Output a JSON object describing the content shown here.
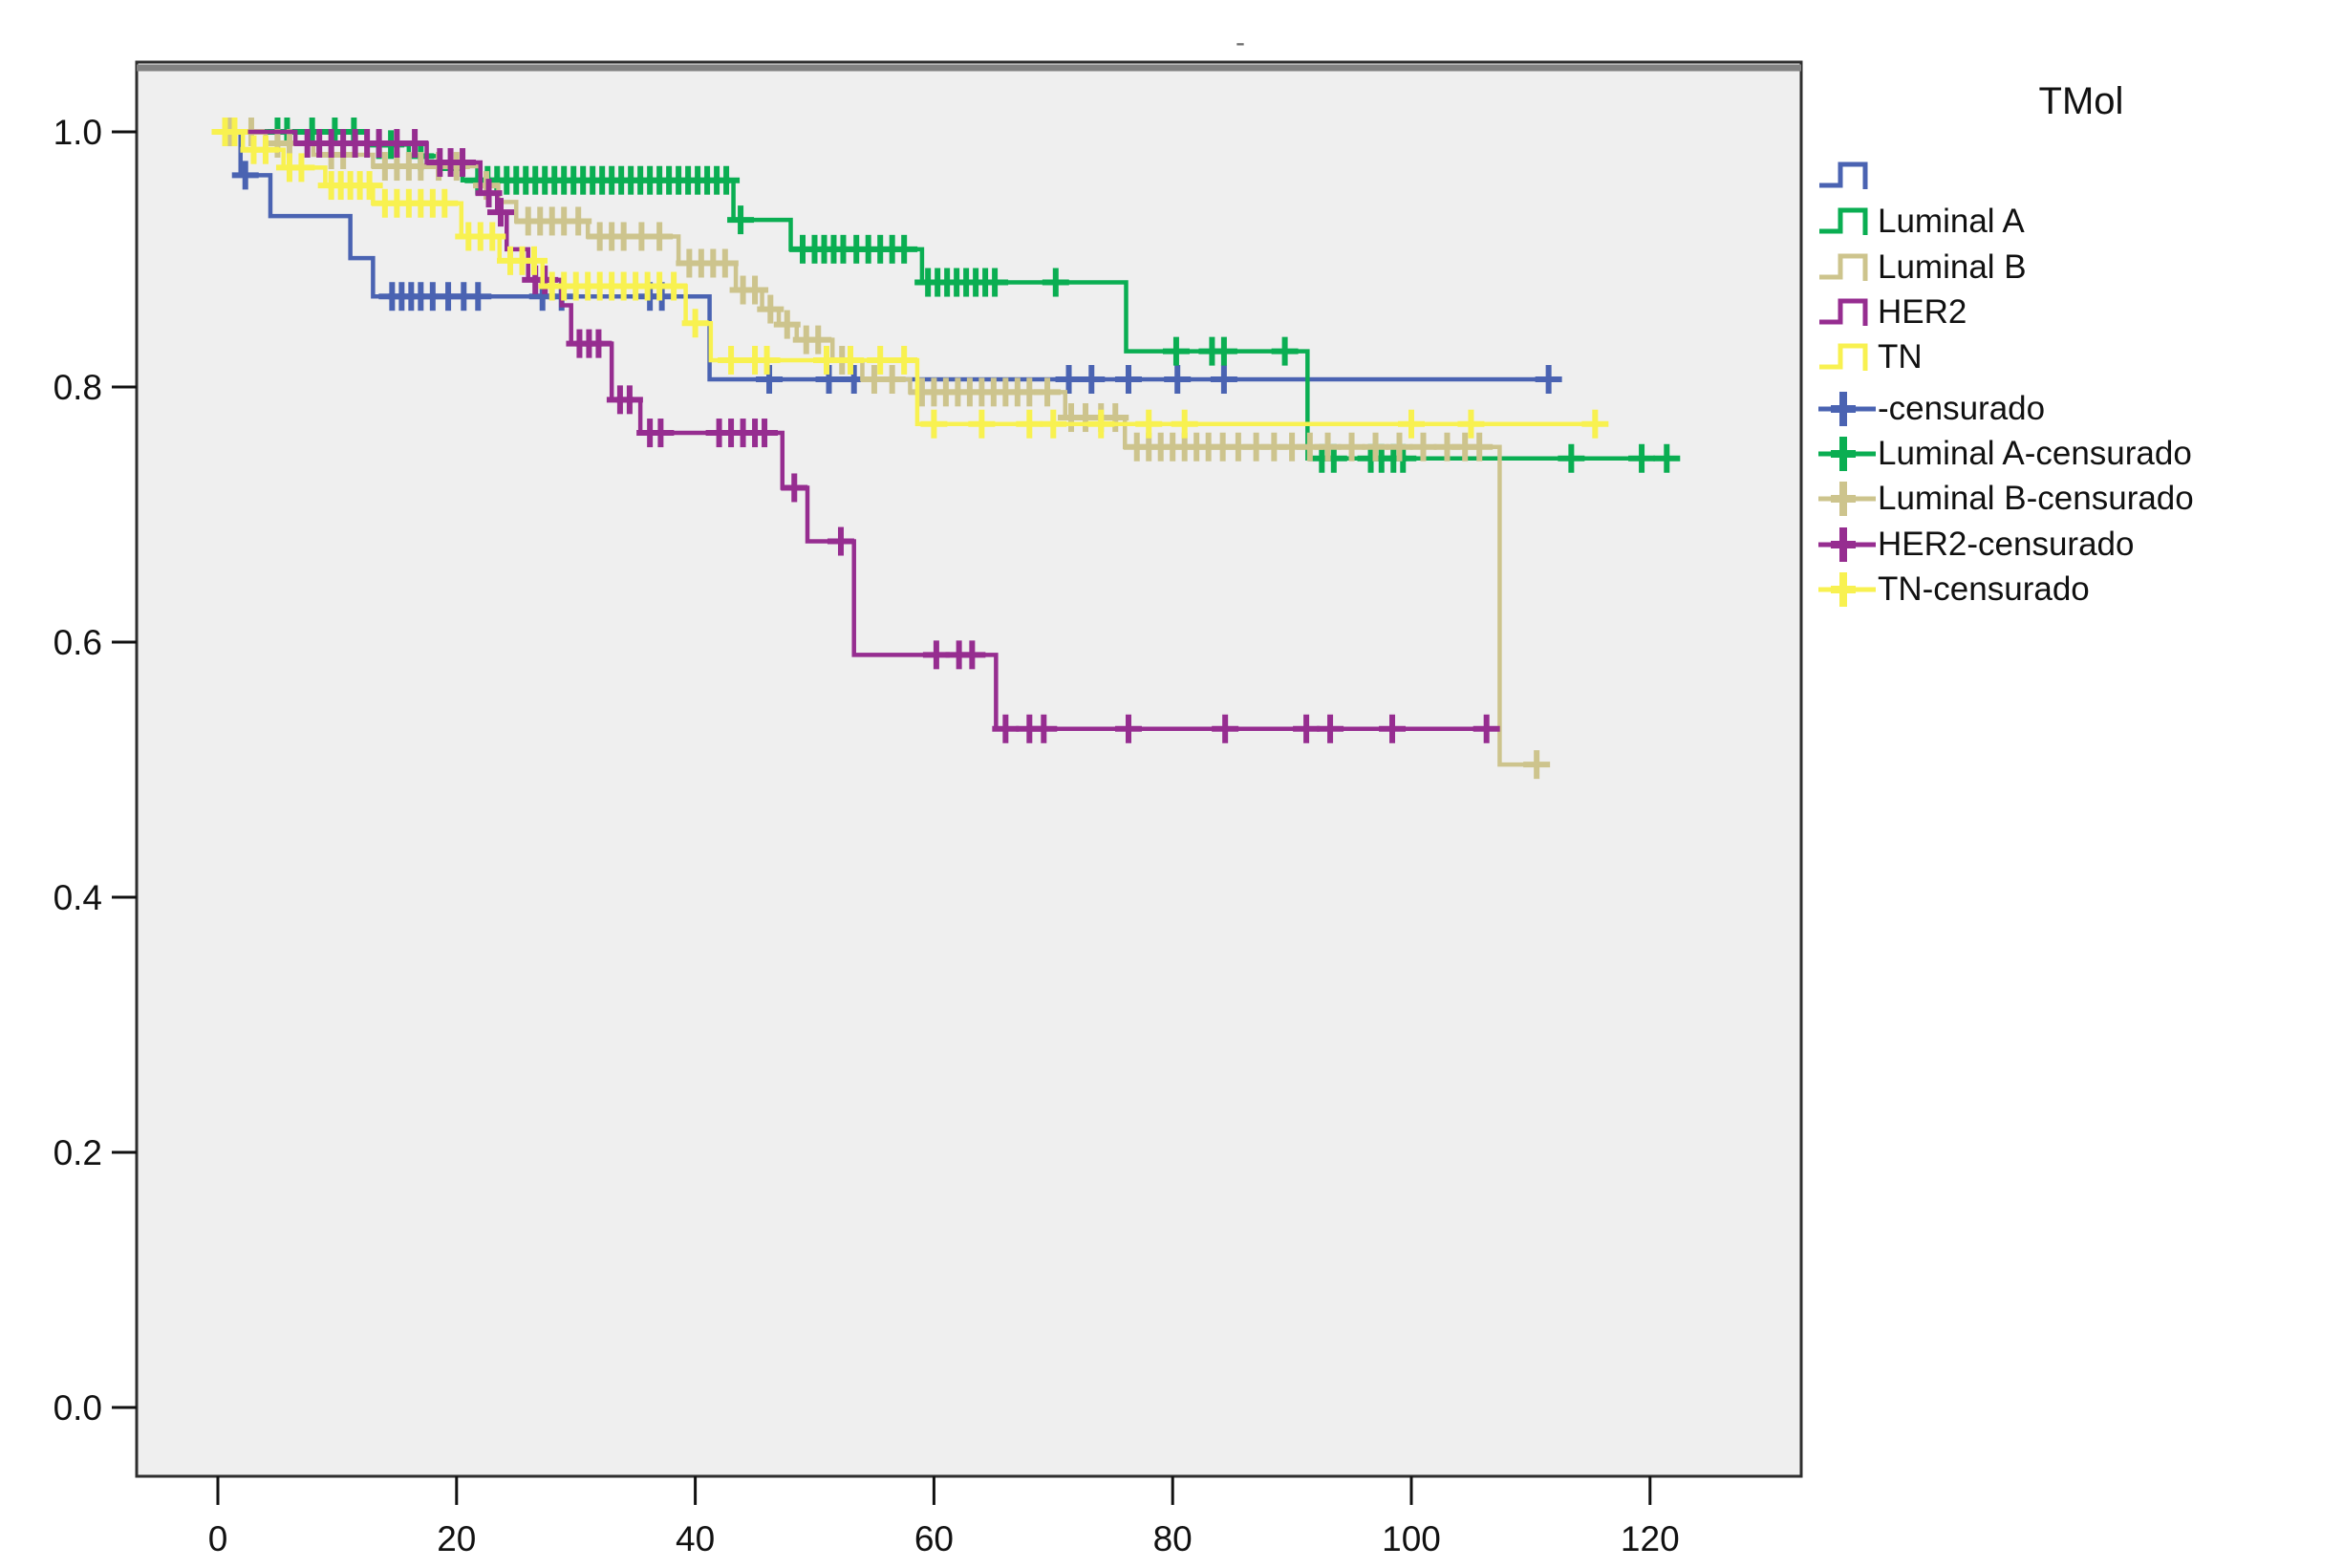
{
  "artifact_mark": "-",
  "chart_data": {
    "type": "line",
    "subtype": "kaplan-meier-step-survival",
    "title": "",
    "xlabel": "",
    "ylabel": "",
    "grid": false,
    "legend_position": "right",
    "x_ticks": [
      0,
      20,
      40,
      60,
      80,
      100,
      120
    ],
    "y_ticks": [
      "1.0",
      "0.8",
      "0.6",
      "0.4",
      "0.2",
      "0.0"
    ],
    "y_tick_values": [
      1.0,
      0.8,
      0.6,
      0.4,
      0.2,
      0.0
    ],
    "xlim": [
      -6.8,
      132.8
    ],
    "ylim": [
      -0.054,
      1.054
    ],
    "plot_background": "#efefef",
    "border_color": "#2e2e2e",
    "series": [
      {
        "name": "",
        "color": "#4a63b2",
        "end_t": 111.5,
        "steps": [
          [
            0,
            1.0
          ],
          [
            1.9,
            0.966
          ],
          [
            4.4,
            0.934
          ],
          [
            11.1,
            0.901
          ],
          [
            13,
            0.871
          ],
          [
            41.2,
            0.806
          ]
        ],
        "censors": [
          2.3,
          14.6,
          15.4,
          16.2,
          17,
          18,
          19.3,
          20.6,
          21.8,
          27.2,
          28.8,
          36.2,
          37.2,
          46.2,
          51.2,
          53.3,
          71.3,
          73.2,
          76.3,
          80.4,
          84.3,
          111.5
        ]
      },
      {
        "name": "Luminal A",
        "color": "#0aae52",
        "end_t": 122.5,
        "steps": [
          [
            0,
            1.0
          ],
          [
            12.5,
            0.99
          ],
          [
            16,
            0.981
          ],
          [
            18.5,
            0.971
          ],
          [
            20.5,
            0.962
          ],
          [
            43.2,
            0.931
          ],
          [
            48,
            0.908
          ],
          [
            59,
            0.882
          ],
          [
            76.1,
            0.828
          ],
          [
            91.3,
            0.744
          ]
        ],
        "censors": [
          5,
          5.8,
          7.9,
          9.8,
          11.4,
          13.5,
          14.5,
          17,
          21.8,
          22.6,
          23.4,
          24.2,
          25,
          25.8,
          26.6,
          27.4,
          28.2,
          29,
          29.8,
          30.6,
          31.4,
          32.2,
          33,
          33.8,
          34.6,
          35.4,
          36.2,
          37,
          37.8,
          38.6,
          39.4,
          40.2,
          41,
          41.8,
          42.6,
          43.8,
          49,
          50,
          50.8,
          51.6,
          52.4,
          53.5,
          54.5,
          55.5,
          56.5,
          57.5,
          59.5,
          60.3,
          61.1,
          61.9,
          62.7,
          63.5,
          64.3,
          65.1,
          70.2,
          80.3,
          83.3,
          84.3,
          89.4,
          92.5,
          93.5,
          96.6,
          97.5,
          98.5,
          99.3,
          113.4,
          119.3,
          121.4
        ]
      },
      {
        "name": "Luminal B",
        "color": "#cdc48d",
        "end_t": 111.3,
        "steps": [
          [
            0,
            1.0
          ],
          [
            4,
            0.991
          ],
          [
            8,
            0.982
          ],
          [
            13,
            0.973
          ],
          [
            22,
            0.958
          ],
          [
            23.5,
            0.945
          ],
          [
            25,
            0.93
          ],
          [
            31,
            0.918
          ],
          [
            38.6,
            0.897
          ],
          [
            43.4,
            0.876
          ],
          [
            45.6,
            0.861
          ],
          [
            47,
            0.849
          ],
          [
            48.5,
            0.837
          ],
          [
            51.5,
            0.821
          ],
          [
            54,
            0.806
          ],
          [
            58,
            0.796
          ],
          [
            71,
            0.776
          ],
          [
            76,
            0.753
          ],
          [
            107.4,
            0.504
          ]
        ],
        "censors": [
          1,
          2.8,
          5,
          6,
          9.5,
          10.5,
          14,
          15,
          16,
          17,
          18.5,
          20,
          22.5,
          26,
          27,
          28,
          29,
          30.2,
          32,
          33,
          34,
          35.5,
          37,
          39.5,
          40.5,
          41.5,
          42.5,
          44,
          45,
          46.3,
          47.7,
          49.3,
          50.3,
          52.3,
          55,
          56.5,
          59,
          60,
          61,
          62,
          63,
          64,
          65,
          66,
          67,
          68,
          69.5,
          71.5,
          72.7,
          74,
          75.2,
          77,
          78,
          79,
          80,
          81,
          82,
          83,
          84.2,
          85.5,
          87,
          88.5,
          90,
          91.5,
          93,
          95,
          97,
          99,
          101,
          103,
          104.5,
          105.7,
          110.5
        ]
      },
      {
        "name": "HER2",
        "color": "#962d90",
        "end_t": 106.3,
        "steps": [
          [
            0,
            1.0
          ],
          [
            6.5,
            0.991
          ],
          [
            17.5,
            0.976
          ],
          [
            22,
            0.952
          ],
          [
            23.4,
            0.937
          ],
          [
            24.2,
            0.908
          ],
          [
            26,
            0.884
          ],
          [
            28.8,
            0.864
          ],
          [
            29.6,
            0.834
          ],
          [
            33,
            0.79
          ],
          [
            35.4,
            0.764
          ],
          [
            47.3,
            0.721
          ],
          [
            49.4,
            0.679
          ],
          [
            53.3,
            0.59
          ],
          [
            65.2,
            0.532
          ]
        ],
        "censors": [
          7.5,
          8.5,
          9.5,
          10.5,
          11.5,
          12.5,
          13.5,
          15,
          16.5,
          18.6,
          19.5,
          20.5,
          22.7,
          23.7,
          26.6,
          27.4,
          30.3,
          31.1,
          31.9,
          33.7,
          34.5,
          36.2,
          37.1,
          42,
          43,
          44,
          45,
          45.8,
          48.3,
          52.2,
          60.2,
          62.1,
          63.2,
          66,
          68,
          69.2,
          76.3,
          84.4,
          91.2,
          93.2,
          98.4,
          106.3
        ]
      },
      {
        "name": "TN",
        "color": "#f8f150",
        "end_t": 115.4,
        "steps": [
          [
            0,
            1.0
          ],
          [
            2.1,
            0.986
          ],
          [
            5.5,
            0.972
          ],
          [
            9,
            0.958
          ],
          [
            13,
            0.944
          ],
          [
            20.4,
            0.918
          ],
          [
            23.6,
            0.899
          ],
          [
            27.2,
            0.879
          ],
          [
            39.2,
            0.85
          ],
          [
            41.3,
            0.821
          ],
          [
            58.6,
            0.771
          ]
        ],
        "censors": [
          0.6,
          1.4,
          3,
          4,
          6,
          7,
          9.5,
          10.3,
          11.1,
          11.9,
          12.7,
          14,
          15,
          16,
          17,
          18,
          19,
          21,
          22,
          23,
          24.5,
          25.5,
          26.5,
          28,
          29,
          30,
          31,
          32,
          33,
          34,
          35,
          36,
          37,
          38.2,
          40,
          43,
          45,
          46,
          51,
          53,
          55.5,
          57.5,
          60,
          64,
          68,
          70,
          74,
          78,
          81,
          100,
          105,
          115.4
        ]
      }
    ],
    "legend": {
      "title": "TMol",
      "items": [
        {
          "label": "",
          "color": "#4a63b2",
          "symbol": "step"
        },
        {
          "label": "Luminal A",
          "color": "#0aae52",
          "symbol": "step"
        },
        {
          "label": "Luminal B",
          "color": "#cdc48d",
          "symbol": "step"
        },
        {
          "label": "HER2",
          "color": "#962d90",
          "symbol": "step"
        },
        {
          "label": "TN",
          "color": "#f8f150",
          "symbol": "step"
        },
        {
          "label": "-censurado",
          "color": "#4a63b2",
          "symbol": "censor"
        },
        {
          "label": "Luminal A-censurado",
          "color": "#0aae52",
          "symbol": "censor"
        },
        {
          "label": "Luminal B-censurado",
          "color": "#cdc48d",
          "symbol": "censor"
        },
        {
          "label": "HER2-censurado",
          "color": "#962d90",
          "symbol": "censor"
        },
        {
          "label": "TN-censurado",
          "color": "#f8f150",
          "symbol": "censor"
        }
      ]
    }
  }
}
